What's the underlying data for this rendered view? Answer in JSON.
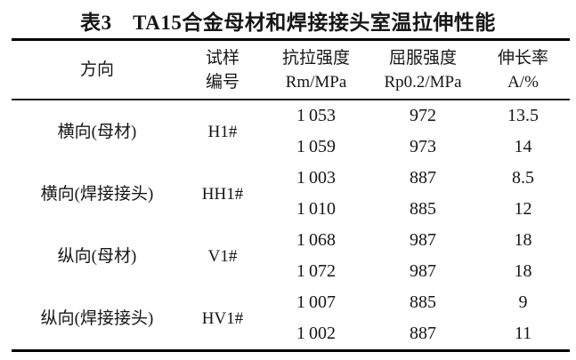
{
  "page": {
    "background": "#ffffff",
    "text_color": "#161616",
    "rule_color": "#000000"
  },
  "title": "表3　TA15合金母材和焊接接头室温拉伸性能",
  "table": {
    "headers": {
      "direction": "方向",
      "sample": [
        "试样",
        "编号"
      ],
      "tensile": [
        "抗拉强度",
        "Rm/MPa"
      ],
      "yield": [
        "屈服强度",
        "Rp0.2/MPa"
      ],
      "elongation": [
        "伸长率",
        "A/%"
      ]
    },
    "groups": [
      {
        "direction": "横向(母材)",
        "sample": "H1#",
        "rows": [
          [
            "1 053",
            "972",
            "13.5"
          ],
          [
            "1 059",
            "973",
            "14"
          ]
        ]
      },
      {
        "direction": "横向(焊接接头)",
        "sample": "HH1#",
        "rows": [
          [
            "1 003",
            "887",
            "8.5"
          ],
          [
            "1 010",
            "885",
            "12"
          ]
        ]
      },
      {
        "direction": "纵向(母材)",
        "sample": "V1#",
        "rows": [
          [
            "1 068",
            "987",
            "18"
          ],
          [
            "1 072",
            "987",
            "18"
          ]
        ]
      },
      {
        "direction": "纵向(焊接接头)",
        "sample": "HV1#",
        "rows": [
          [
            "1 007",
            "885",
            "9"
          ],
          [
            "1 002",
            "887",
            "11"
          ]
        ]
      }
    ]
  }
}
